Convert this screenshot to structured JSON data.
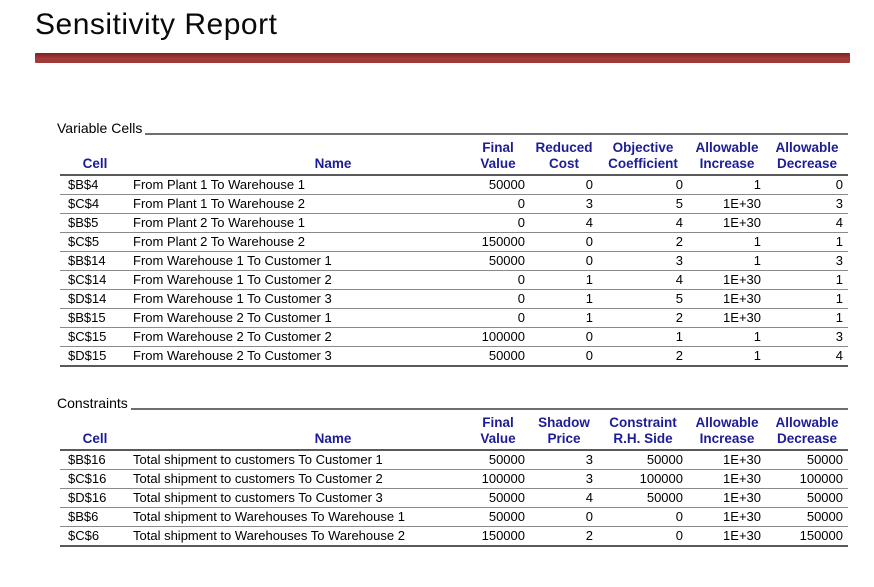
{
  "theme": {
    "accent": "#a53b3b",
    "accent-dark": "#7d1f1f",
    "header-text": "#1c1c96",
    "rule": "#6e6e6e",
    "row-line": "#8a8a8a"
  },
  "title": "Sensitivity Report",
  "variable_cells": {
    "label": "Variable Cells",
    "header_top": [
      "",
      "",
      "Final",
      "Reduced",
      "Objective",
      "Allowable",
      "Allowable"
    ],
    "header_bottom": [
      "Cell",
      "Name",
      "Value",
      "Cost",
      "Coefficient",
      "Increase",
      "Decrease"
    ],
    "rows": [
      [
        "$B$4",
        "From Plant 1 To Warehouse 1",
        "50000",
        "0",
        "0",
        "1",
        "0"
      ],
      [
        "$C$4",
        "From Plant 1 To Warehouse 2",
        "0",
        "3",
        "5",
        "1E+30",
        "3"
      ],
      [
        "$B$5",
        "From Plant 2 To Warehouse 1",
        "0",
        "4",
        "4",
        "1E+30",
        "4"
      ],
      [
        "$C$5",
        "From Plant 2 To Warehouse 2",
        "150000",
        "0",
        "2",
        "1",
        "1"
      ],
      [
        "$B$14",
        "From Warehouse 1 To Customer 1",
        "50000",
        "0",
        "3",
        "1",
        "3"
      ],
      [
        "$C$14",
        "From Warehouse 1 To Customer 2",
        "0",
        "1",
        "4",
        "1E+30",
        "1"
      ],
      [
        "$D$14",
        "From Warehouse 1 To Customer 3",
        "0",
        "1",
        "5",
        "1E+30",
        "1"
      ],
      [
        "$B$15",
        "From Warehouse 2 To Customer 1",
        "0",
        "1",
        "2",
        "1E+30",
        "1"
      ],
      [
        "$C$15",
        "From Warehouse 2 To Customer 2",
        "100000",
        "0",
        "1",
        "1",
        "3"
      ],
      [
        "$D$15",
        "From Warehouse 2 To Customer 3",
        "50000",
        "0",
        "2",
        "1",
        "4"
      ]
    ]
  },
  "constraints": {
    "label": "Constraints",
    "header_top": [
      "",
      "",
      "Final",
      "Shadow",
      "Constraint",
      "Allowable",
      "Allowable"
    ],
    "header_bottom": [
      "Cell",
      "Name",
      "Value",
      "Price",
      "R.H. Side",
      "Increase",
      "Decrease"
    ],
    "rows": [
      [
        "$B$16",
        "Total shipment to customers To Customer 1",
        "50000",
        "3",
        "50000",
        "1E+30",
        "50000"
      ],
      [
        "$C$16",
        "Total shipment to customers To Customer 2",
        "100000",
        "3",
        "100000",
        "1E+30",
        "100000"
      ],
      [
        "$D$16",
        "Total shipment to customers To Customer 3",
        "50000",
        "4",
        "50000",
        "1E+30",
        "50000"
      ],
      [
        "$B$6",
        "Total shipment to Warehouses To Warehouse 1",
        "50000",
        "0",
        "0",
        "1E+30",
        "50000"
      ],
      [
        "$C$6",
        "Total shipment to Warehouses To Warehouse 2",
        "150000",
        "2",
        "0",
        "1E+30",
        "150000"
      ]
    ]
  }
}
